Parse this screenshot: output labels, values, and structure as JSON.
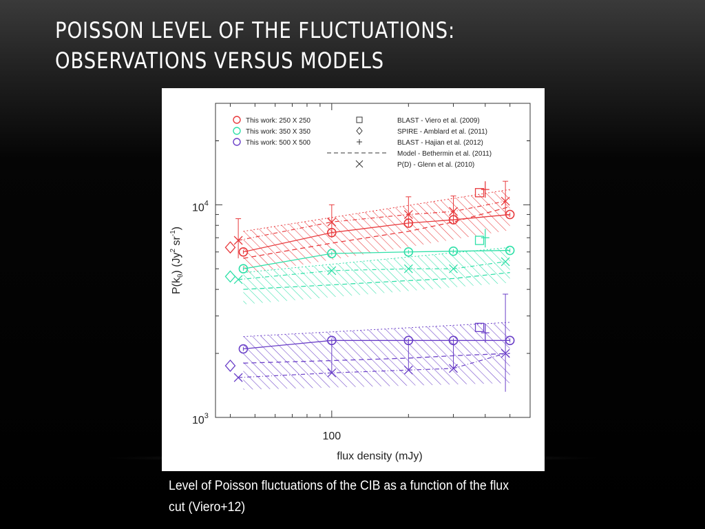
{
  "slide": {
    "title_line1": "POISSON LEVEL OF THE FLUCTUATIONS:",
    "title_line2": "OBSERVATIONS VERSUS MODELS",
    "caption": "Level of Poisson fluctuations of the CIB as a function of the flux cut (Viero+12)"
  },
  "colors": {
    "red": "#e8393c",
    "cyan": "#2fe0a8",
    "purple": "#6a3fc8",
    "axis": "#333333"
  },
  "chart_data": {
    "type": "scatter",
    "title": "",
    "xlabel": "flux density (mJy)",
    "ylabel": "P(kθ) (Jy² sr⁻¹)",
    "x_scale": "log",
    "y_scale": "log",
    "xlim": [
      35,
      600
    ],
    "ylim": [
      1000,
      30000
    ],
    "x_ticks": [
      {
        "value": 100,
        "label": "100"
      }
    ],
    "y_ticks": [
      {
        "value": 1000,
        "base": "10",
        "exp": "3"
      },
      {
        "value": 10000,
        "base": "10",
        "exp": "4"
      }
    ],
    "legend_placement": "top",
    "legend": [
      {
        "label": "This work: 250 X 250",
        "symbol": "circle",
        "color": "red"
      },
      {
        "label": "This work: 350 X 350",
        "symbol": "circle",
        "color": "cyan"
      },
      {
        "label": "This work: 500 X 500",
        "symbol": "circle",
        "color": "purple"
      },
      {
        "label": "BLAST - Viero et al. (2009)",
        "symbol": "square",
        "color": "axis"
      },
      {
        "label": "SPIRE - Amblard et al. (2011)",
        "symbol": "diamond",
        "color": "axis"
      },
      {
        "label": "BLAST - Hajian et al. (2012)",
        "symbol": "plus",
        "color": "axis"
      },
      {
        "label": "Model - Bethermin et al. (2011)",
        "symbol": "dashed",
        "color": "axis"
      },
      {
        "label": "P(D) - Glenn et al. (2010)",
        "symbol": "cross",
        "color": "axis"
      }
    ],
    "this_work": [
      {
        "band": "250",
        "color": "red",
        "x": [
          45,
          100,
          200,
          300,
          500
        ],
        "y": [
          6000,
          7400,
          8200,
          8500,
          9000
        ],
        "err_lo": [
          6000,
          7400,
          8200,
          8500,
          9000
        ],
        "err_hi": [
          6000,
          7400,
          8200,
          8500,
          9000
        ]
      },
      {
        "band": "350",
        "color": "cyan",
        "x": [
          45,
          100,
          200,
          300,
          500
        ],
        "y": [
          5000,
          5900,
          6000,
          6050,
          6100
        ]
      },
      {
        "band": "500",
        "color": "purple",
        "x": [
          45,
          100,
          200,
          300,
          500
        ],
        "y": [
          2100,
          2300,
          2300,
          2300,
          2300
        ]
      }
    ],
    "glenn_2010": [
      {
        "color": "red",
        "x": [
          43,
          100,
          200,
          300,
          480
        ],
        "y": [
          6800,
          8300,
          9000,
          9300,
          10400
        ],
        "err_lo": [
          5600,
          7000,
          7800,
          8100,
          9000
        ],
        "err_hi": [
          8600,
          10000,
          10900,
          11000,
          12900
        ]
      },
      {
        "color": "cyan",
        "x": [
          43,
          100,
          200,
          300,
          480
        ],
        "y": [
          4450,
          4900,
          5000,
          5000,
          5400
        ]
      },
      {
        "color": "purple",
        "x": [
          43,
          100,
          200,
          300,
          480
        ],
        "y": [
          1540,
          1620,
          1670,
          1700,
          2000
        ],
        "err_lo": [
          1540,
          1620,
          1670,
          1700,
          1320
        ],
        "err_hi": [
          1540,
          2300,
          2300,
          2300,
          3800
        ]
      }
    ],
    "amblard_2011": [
      {
        "color": "red",
        "x": 40,
        "y": 6300
      },
      {
        "color": "cyan",
        "x": 40,
        "y": 4600
      },
      {
        "color": "purple",
        "x": 40,
        "y": 1750
      }
    ],
    "viero_2009": [
      {
        "color": "red",
        "x": 380,
        "y": 11400
      },
      {
        "color": "cyan",
        "x": 380,
        "y": 6800
      },
      {
        "color": "purple",
        "x": 380,
        "y": 2650
      }
    ],
    "hajian_2012": [
      {
        "color": "red",
        "x": 400,
        "y": 11800,
        "err_lo": 10800,
        "err_hi": 12900
      },
      {
        "color": "cyan",
        "x": 400,
        "y": 7000,
        "err_lo": 6300,
        "err_hi": 7700
      },
      {
        "color": "purple",
        "x": 400,
        "y": 2500,
        "err_lo": 2250,
        "err_hi": 2750
      }
    ],
    "bethermin_model": [
      {
        "color": "red",
        "x": [
          45,
          100,
          200,
          300,
          500
        ],
        "y": [
          5600,
          6600,
          7500,
          8300,
          9800
        ]
      },
      {
        "color": "cyan",
        "x": [
          45,
          100,
          200,
          300,
          500
        ],
        "y": [
          4000,
          4200,
          4400,
          4500,
          4800
        ]
      },
      {
        "color": "purple",
        "x": [
          45,
          100,
          200,
          300,
          500
        ],
        "y": [
          1800,
          1850,
          1900,
          1950,
          2000
        ]
      }
    ],
    "model_bands": [
      {
        "color": "red",
        "x": [
          45,
          500
        ],
        "y_low": [
          4700,
          7600
        ],
        "y_high": [
          7500,
          11800
        ]
      },
      {
        "color": "cyan",
        "x": [
          45,
          500
        ],
        "y_low": [
          3400,
          4300
        ],
        "y_high": [
          4800,
          6300
        ]
      },
      {
        "color": "purple",
        "x": [
          45,
          500
        ],
        "y_low": [
          1350,
          1450
        ],
        "y_high": [
          2400,
          2800
        ]
      }
    ]
  }
}
